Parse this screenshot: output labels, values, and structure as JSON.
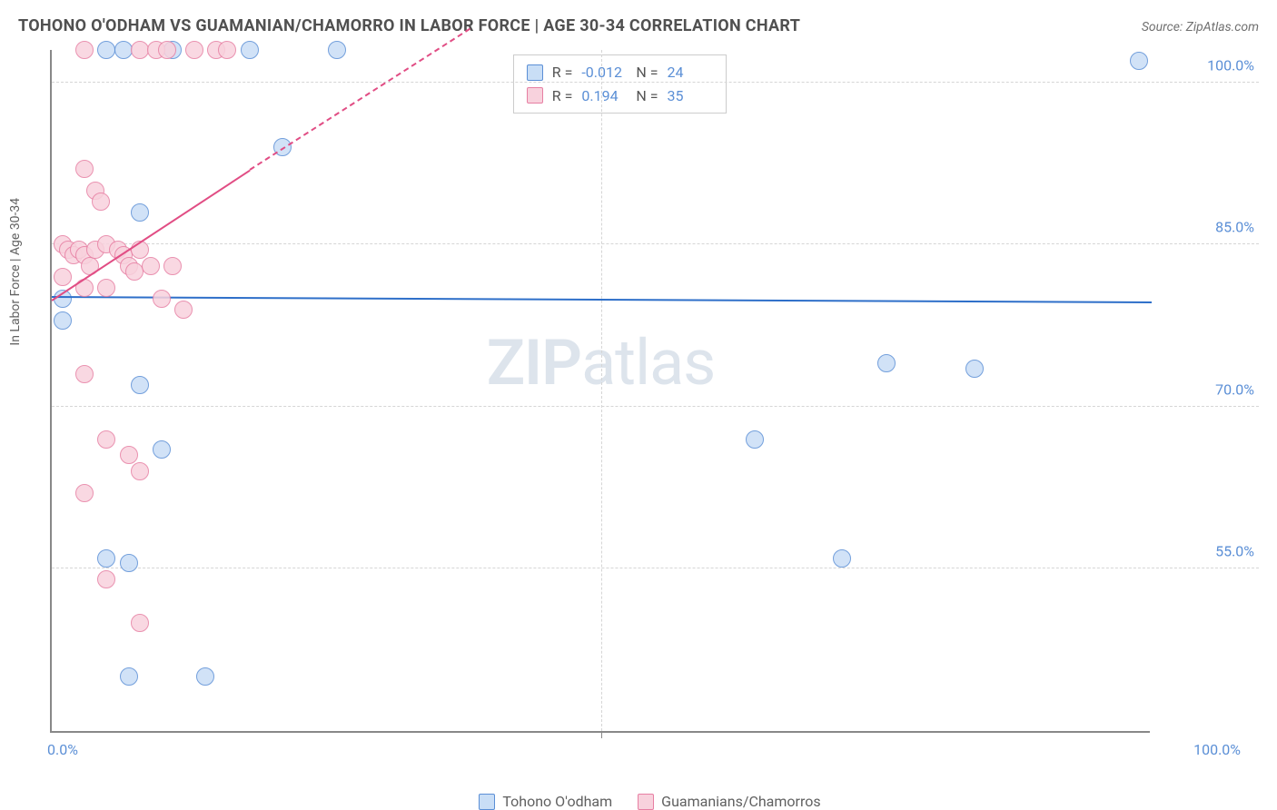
{
  "title": "TOHONO O'ODHAM VS GUAMANIAN/CHAMORRO IN LABOR FORCE | AGE 30-34 CORRELATION CHART",
  "source": "Source: ZipAtlas.com",
  "y_axis_label": "In Labor Force | Age 30-34",
  "watermark_a": "ZIP",
  "watermark_b": "atlas",
  "chart": {
    "type": "scatter",
    "xlim": [
      0,
      100
    ],
    "ylim": [
      40,
      103
    ],
    "x_ticks": [
      0,
      50,
      100
    ],
    "x_tick_labels": [
      "0.0%",
      "",
      "100.0%"
    ],
    "y_grid": [
      55,
      70,
      85,
      100
    ],
    "y_tick_labels": [
      "55.0%",
      "70.0%",
      "85.0%",
      "100.0%"
    ],
    "x_grid_minor": [
      50
    ],
    "grid_color": "#d5d5d5",
    "axis_color": "#888888",
    "background_color": "#ffffff",
    "tick_label_color": "#5b8fd6",
    "point_radius": 10,
    "series": [
      {
        "name": "Tohono O'odham",
        "fill": "#c9def6",
        "stroke": "#5b8fd6",
        "trend_color": "#2e6fc9",
        "trend": {
          "x1": 0,
          "y1": 80.3,
          "x2": 100,
          "y2": 79.8,
          "dashed_from_x": 100
        },
        "points": [
          [
            5,
            103
          ],
          [
            6.5,
            103
          ],
          [
            11,
            103
          ],
          [
            18,
            103
          ],
          [
            26,
            103
          ],
          [
            99,
            102
          ],
          [
            21,
            94
          ],
          [
            8,
            88
          ],
          [
            1,
            80
          ],
          [
            1,
            78
          ],
          [
            8,
            72
          ],
          [
            10,
            66
          ],
          [
            5,
            56
          ],
          [
            7,
            55.5
          ],
          [
            7,
            45
          ],
          [
            14,
            45
          ],
          [
            64,
            67
          ],
          [
            76,
            74
          ],
          [
            84,
            73.5
          ],
          [
            72,
            56
          ]
        ]
      },
      {
        "name": "Guamanians/Chamorros",
        "fill": "#f8d2dd",
        "stroke": "#e77fa3",
        "trend_color": "#e14d84",
        "trend": {
          "x1": 0,
          "y1": 80,
          "x2": 18,
          "y2": 92,
          "dashed_from_x": 18,
          "x2d": 38,
          "y2d": 105
        },
        "points": [
          [
            3,
            103
          ],
          [
            8,
            103
          ],
          [
            9.5,
            103
          ],
          [
            10.5,
            103
          ],
          [
            13,
            103
          ],
          [
            15,
            103
          ],
          [
            16,
            103
          ],
          [
            3,
            92
          ],
          [
            4,
            90
          ],
          [
            4.5,
            89
          ],
          [
            1,
            85
          ],
          [
            1.5,
            84.5
          ],
          [
            2,
            84
          ],
          [
            2.5,
            84.5
          ],
          [
            3,
            84
          ],
          [
            3.5,
            83
          ],
          [
            4,
            84.5
          ],
          [
            5,
            85
          ],
          [
            6,
            84.5
          ],
          [
            6.5,
            84
          ],
          [
            8,
            84.5
          ],
          [
            7,
            83
          ],
          [
            7.5,
            82.5
          ],
          [
            1,
            82
          ],
          [
            3,
            81
          ],
          [
            5,
            81
          ],
          [
            9,
            83
          ],
          [
            11,
            83
          ],
          [
            10,
            80
          ],
          [
            12,
            79
          ],
          [
            3,
            73
          ],
          [
            5,
            67
          ],
          [
            7,
            65.5
          ],
          [
            8,
            64
          ],
          [
            3,
            62
          ],
          [
            5,
            54
          ],
          [
            8,
            50
          ]
        ]
      }
    ],
    "stats": [
      {
        "swatch_fill": "#c9def6",
        "swatch_stroke": "#5b8fd6",
        "r_label": "R =",
        "r": "-0.012",
        "n_label": "N =",
        "n": "24"
      },
      {
        "swatch_fill": "#f8d2dd",
        "swatch_stroke": "#e77fa3",
        "r_label": "R =",
        "r": " 0.194",
        "n_label": "N =",
        "n": "35"
      }
    ],
    "legend": [
      {
        "swatch_fill": "#c9def6",
        "swatch_stroke": "#5b8fd6",
        "label": "Tohono O'odham"
      },
      {
        "swatch_fill": "#f8d2dd",
        "swatch_stroke": "#e77fa3",
        "label": "Guamanians/Chamorros"
      }
    ]
  }
}
